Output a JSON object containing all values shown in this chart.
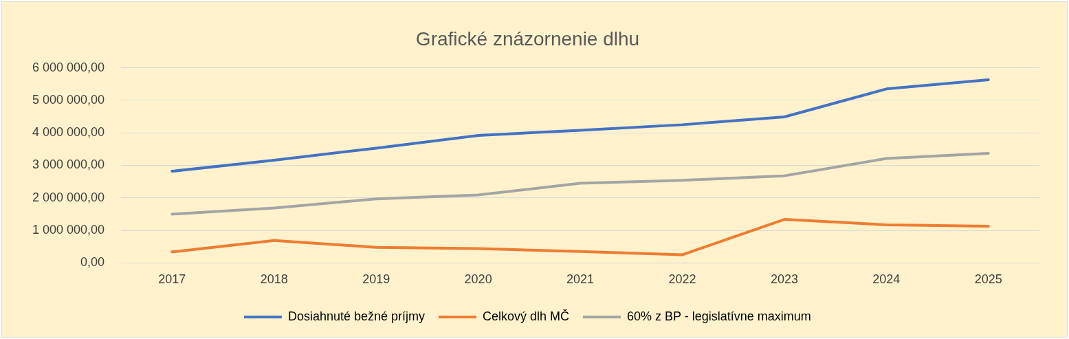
{
  "chart_data": {
    "type": "line",
    "title": "Grafické znázornenie dlhu",
    "categories": [
      "2017",
      "2018",
      "2019",
      "2020",
      "2021",
      "2022",
      "2023",
      "2024",
      "2025"
    ],
    "series": [
      {
        "name": "Dosiahnuté bežné príjmy",
        "color": "#4472c4",
        "values": [
          2820000,
          3160000,
          3530000,
          3920000,
          4080000,
          4250000,
          4490000,
          5350000,
          5630000
        ]
      },
      {
        "name": "Celkový dlh MČ",
        "color": "#ed7d31",
        "values": [
          340000,
          690000,
          480000,
          440000,
          350000,
          250000,
          1340000,
          1170000,
          1130000
        ]
      },
      {
        "name": "60% z BP - legislatívne maximum",
        "color": "#a5a5a5",
        "values": [
          1500000,
          1690000,
          1970000,
          2090000,
          2450000,
          2540000,
          2680000,
          3210000,
          3370000
        ]
      }
    ],
    "ylim": [
      0,
      6000000
    ],
    "yticks": [
      {
        "value": 0,
        "label": "0,00"
      },
      {
        "value": 1000000,
        "label": "1 000 000,00"
      },
      {
        "value": 2000000,
        "label": "2 000 000,00"
      },
      {
        "value": 3000000,
        "label": "3 000 000,00"
      },
      {
        "value": 4000000,
        "label": "4 000 000,00"
      },
      {
        "value": 5000000,
        "label": "5 000 000,00"
      },
      {
        "value": 6000000,
        "label": "6 000 000,00"
      }
    ],
    "grid": "y",
    "legend": "bottom",
    "marker": "none",
    "line_style": "solid"
  }
}
